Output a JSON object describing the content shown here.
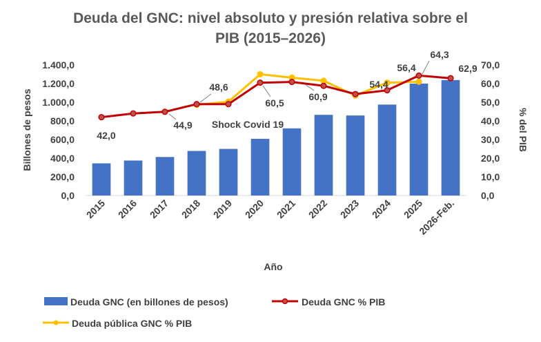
{
  "chart_data": {
    "type": "bar",
    "title_lines": [
      "Deuda del GNC: nivel absoluto y presión relativa sobre el",
      "PIB (2015–2026)"
    ],
    "categories": [
      "2015",
      "2016",
      "2017",
      "2018",
      "2019",
      "2020",
      "2021",
      "2022",
      "2023",
      "2024",
      "2025",
      "2026-Feb."
    ],
    "xlabel": "Año",
    "ylabel": "Billones de pesos",
    "y2label": "% del PIB",
    "ylim": [
      0,
      1400
    ],
    "y2lim": [
      0,
      70
    ],
    "yticks": [
      "0,0",
      "200,0",
      "400,0",
      "600,0",
      "800,0",
      "1.000,0",
      "1.200,0",
      "1.400,0"
    ],
    "y2ticks": [
      "0,0",
      "10,0",
      "20,0",
      "30,0",
      "40,0",
      "50,0",
      "60,0",
      "70,0"
    ],
    "colors": {
      "bars": "#4472C4",
      "gnc_pct": "#C00000",
      "public_pct": "#FFC000",
      "marker_fill": "#C0504D"
    },
    "series": [
      {
        "name": "Deuda GNC (en billones de pesos)",
        "type": "bar",
        "axis": "left",
        "values": [
          345,
          375,
          413,
          478,
          500,
          608,
          720,
          865,
          858,
          975,
          1200,
          1238
        ]
      },
      {
        "name": "Deuda GNC % PIB",
        "type": "line",
        "axis": "right",
        "values": [
          42.0,
          44.0,
          44.9,
          49.0,
          49.0,
          60.5,
          60.9,
          58.8,
          54.4,
          56.4,
          64.3,
          62.9
        ]
      },
      {
        "name": "Deuda pública GNC % PIB",
        "type": "line",
        "axis": "right",
        "values": [
          null,
          null,
          null,
          48.6,
          50.3,
          65.0,
          63.2,
          61.5,
          53.6,
          60.5,
          61.0,
          null
        ]
      }
    ],
    "data_labels": [
      {
        "text": "42,0"
      },
      {
        "text": "44,9"
      },
      {
        "text": "48,6"
      },
      {
        "text": "60,5"
      },
      {
        "text": "60,9"
      },
      {
        "text": "54,4"
      },
      {
        "text": "56,4"
      },
      {
        "text": "64,3"
      },
      {
        "text": "62,9"
      }
    ],
    "annotations": [
      {
        "text": "Shock Covid 19"
      }
    ],
    "legend": {
      "placement": "bottom",
      "entries": [
        "Deuda GNC (en billones de pesos)",
        "Deuda GNC % PIB",
        "Deuda pública GNC % PIB"
      ]
    },
    "grid": false
  }
}
